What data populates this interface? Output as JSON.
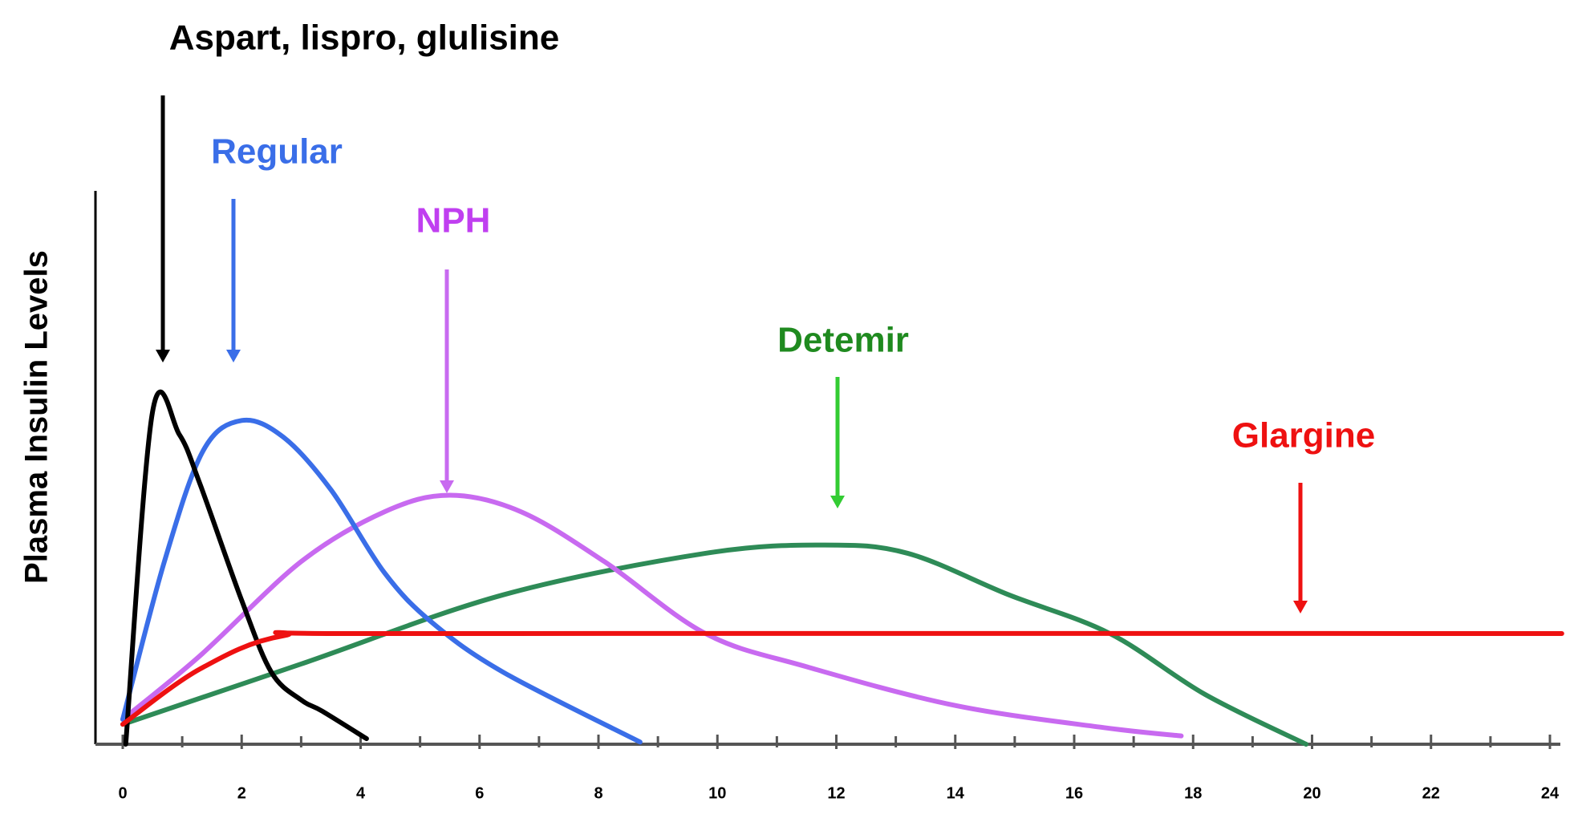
{
  "chart_data": {
    "type": "line",
    "y_label": "Plasma Insulin Levels",
    "xlim": [
      0,
      24.2
    ],
    "ylim": [
      0,
      100
    ],
    "xticks": [
      0,
      2,
      4,
      6,
      8,
      10,
      12,
      14,
      16,
      18,
      20,
      22,
      24
    ],
    "xminorticks": [
      1,
      3,
      5,
      7,
      9,
      11,
      13,
      15,
      17,
      19,
      21,
      23
    ],
    "series": [
      {
        "name": "Aspart, lispro, glulisine",
        "color": "#000000",
        "label_color": "#000000",
        "x": [
          0.05,
          0.5,
          0.95,
          1.3,
          2.0,
          2.5,
          3.0,
          3.35,
          4.1
        ],
        "values": [
          0,
          60,
          56,
          47,
          26,
          13,
          8,
          6,
          1
        ]
      },
      {
        "name": "Regular",
        "color": "#3a6ee8",
        "label_color": "#3a6ee8",
        "x": [
          0,
          0.7,
          1.35,
          2.0,
          2.7,
          3.5,
          4.4,
          5.2,
          6.4,
          8.7
        ],
        "values": [
          4.5,
          33,
          53,
          58.5,
          55.5,
          46,
          31,
          22,
          13,
          0.4
        ]
      },
      {
        "name": "NPH",
        "color": "#c86af0",
        "label_color": "#c03ff0",
        "x": [
          0,
          1.3,
          3.0,
          4.4,
          5.5,
          6.7,
          8.1,
          9.8,
          11.5,
          14.0,
          16.5,
          17.8
        ],
        "values": [
          4.5,
          16,
          33,
          42,
          45,
          42,
          33,
          20,
          14,
          7,
          3,
          1.5
        ]
      },
      {
        "name": "Detemir",
        "color": "#2e8b57",
        "label_color": "#1f8a1f",
        "x": [
          0,
          3.0,
          6.4,
          9.8,
          11.8,
          13.2,
          14.9,
          16.6,
          18.2,
          19.9
        ],
        "values": [
          3.6,
          14.5,
          27,
          34.5,
          36,
          34.5,
          27,
          20,
          9,
          0
        ]
      },
      {
        "name": "Glargine",
        "color": "#ee1111",
        "label_color": "#ee1111",
        "x": [
          0,
          1.3,
          2.7,
          4.7,
          24.2
        ],
        "values": [
          3.6,
          13.6,
          19.6,
          20,
          20
        ]
      }
    ]
  }
}
